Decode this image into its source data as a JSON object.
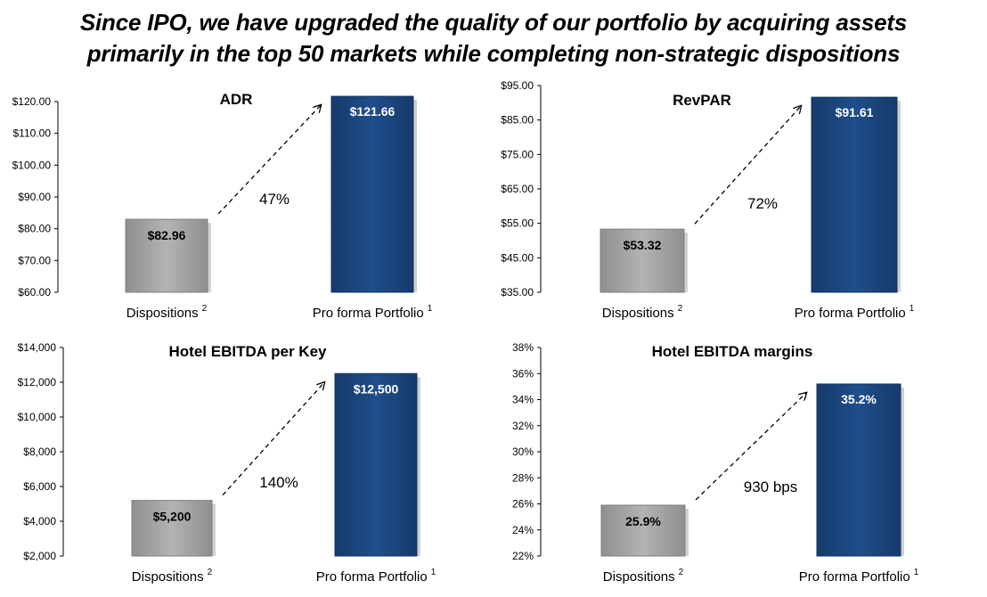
{
  "headline": {
    "line1": "Since IPO, we have upgraded the quality of our portfolio by acquiring assets",
    "line2": "primarily in the top 50 markets while completing non-strategic dispositions"
  },
  "colors": {
    "dispositions_bar": "#b3b3b3",
    "portfolio_bar": "#1f4e8c",
    "axis": "#000000"
  },
  "chart_data": [
    {
      "type": "bar",
      "title": "ADR",
      "categories": [
        "Dispositions",
        "Pro forma Portfolio"
      ],
      "footnotes": [
        "2",
        "1"
      ],
      "values": [
        82.96,
        121.66
      ],
      "value_labels": [
        "$82.96",
        "$121.66"
      ],
      "ylim": [
        60,
        120
      ],
      "yticks": [
        60,
        70,
        80,
        90,
        100,
        110,
        120
      ],
      "ytick_labels": [
        "$60.00",
        "$70.00",
        "$80.00",
        "$90.00",
        "$100.00",
        "$110.00",
        "$120.00"
      ],
      "growth_label": "47%",
      "grid": false
    },
    {
      "type": "bar",
      "title": "RevPAR",
      "categories": [
        "Dispositions",
        "Pro forma Portfolio"
      ],
      "footnotes": [
        "2",
        "1"
      ],
      "values": [
        53.32,
        91.61
      ],
      "value_labels": [
        "$53.32",
        "$91.61"
      ],
      "ylim": [
        35,
        95
      ],
      "yticks": [
        35,
        45,
        55,
        65,
        75,
        85,
        95
      ],
      "ytick_labels": [
        "$35.00",
        "$45.00",
        "$55.00",
        "$65.00",
        "$75.00",
        "$85.00",
        "$95.00"
      ],
      "growth_label": "72%",
      "grid": false
    },
    {
      "type": "bar",
      "title": "Hotel EBITDA per Key",
      "categories": [
        "Dispositions",
        "Pro forma Portfolio"
      ],
      "footnotes": [
        "2",
        "1"
      ],
      "values": [
        5200,
        12500
      ],
      "value_labels": [
        "$5,200",
        "$12,500"
      ],
      "ylim": [
        2000,
        14000
      ],
      "yticks": [
        2000,
        4000,
        6000,
        8000,
        10000,
        12000,
        14000
      ],
      "ytick_labels": [
        "$2,000",
        "$4,000",
        "$6,000",
        "$8,000",
        "$10,000",
        "$12,000",
        "$14,000"
      ],
      "growth_label": "140%",
      "grid": false
    },
    {
      "type": "bar",
      "title": "Hotel EBITDA margins",
      "categories": [
        "Dispositions",
        "Pro forma Portfolio"
      ],
      "footnotes": [
        "2",
        "1"
      ],
      "values": [
        25.9,
        35.2
      ],
      "value_labels": [
        "25.9%",
        "35.2%"
      ],
      "ylim": [
        22,
        38
      ],
      "yticks": [
        22,
        24,
        26,
        28,
        30,
        32,
        34,
        36,
        38
      ],
      "ytick_labels": [
        "22%",
        "24%",
        "26%",
        "28%",
        "30%",
        "32%",
        "34%",
        "36%",
        "38%"
      ],
      "growth_label": "930 bps",
      "grid": false
    }
  ]
}
